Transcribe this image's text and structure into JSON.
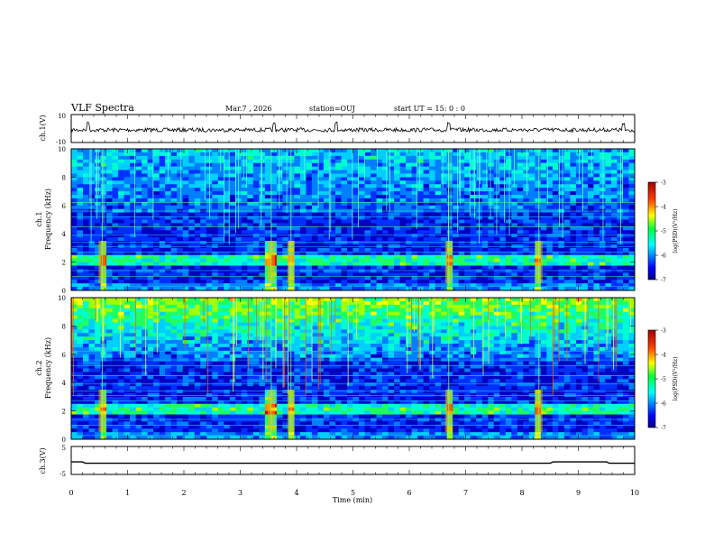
{
  "header": {
    "title": "VLF Spectra",
    "date": "Mar.7 , 2026",
    "station": "station=OUJ",
    "start_time": "start  UT =   15: 0  : 0"
  },
  "chart_data": [
    {
      "name": "ch1-waveform",
      "type": "line",
      "ylabel": "ch.1(V)",
      "ylim": [
        -10,
        10
      ],
      "ytick_labels": [
        "10",
        "-10"
      ],
      "baseline": -1,
      "description_values_x": [
        0,
        10
      ],
      "spike_times_min": [
        0.3,
        3.6,
        4.7,
        6.7,
        9.8
      ]
    },
    {
      "name": "ch1-spectrogram",
      "type": "heatmap",
      "ylabel": "ch.1\nFrequency (kHz)",
      "ylim": [
        0,
        10
      ],
      "yticks": [
        0,
        2,
        4,
        6,
        8,
        10
      ],
      "ytick_labels": [
        "0",
        "2",
        "4",
        "6",
        "8",
        "10"
      ],
      "xlim": [
        0,
        10
      ],
      "colorbar": {
        "label": "log(PSD)(V²/Hz)",
        "range": [
          -7,
          -3
        ],
        "tick_labels": [
          "-3",
          "-4",
          "-5",
          "-6",
          "-7"
        ]
      },
      "event_times_min": [
        0.55,
        3.55,
        3.9,
        6.7,
        8.3
      ]
    },
    {
      "name": "ch2-spectrogram",
      "type": "heatmap",
      "ylabel": "ch.2\nFrequency (kHz)",
      "ylim": [
        0,
        10
      ],
      "yticks": [
        0,
        2,
        4,
        6,
        8,
        10
      ],
      "ytick_labels": [
        "0",
        "2",
        "4",
        "6",
        "8",
        "10"
      ],
      "xlim": [
        0,
        10
      ],
      "colorbar": {
        "label": "log(PSD)(V²/Hz)",
        "range": [
          -7,
          -3
        ],
        "tick_labels": [
          "-3",
          "-4",
          "-5",
          "-6",
          "-7"
        ]
      },
      "event_times_min": [
        0.55,
        3.55,
        3.9,
        6.7,
        8.3
      ]
    },
    {
      "name": "ch3-signal",
      "type": "line",
      "ylabel": "ch.3(V)",
      "ylim": [
        -5,
        5
      ],
      "ytick_labels": [
        "5",
        "-5"
      ],
      "level": -1,
      "elevated_segments_min": [
        [
          0.0,
          0.2
        ],
        [
          8.55,
          9.5
        ]
      ],
      "xlabel": "Time  (min)",
      "xticks": [
        0,
        1,
        2,
        3,
        4,
        5,
        6,
        7,
        8,
        9,
        10
      ],
      "xtick_labels": [
        "0",
        "1",
        "2",
        "3",
        "4",
        "5",
        "6",
        "7",
        "8",
        "9",
        "10"
      ]
    }
  ],
  "colors": {
    "background": "#ffffff",
    "axis": "#000000",
    "spectrogram_low": "#000070",
    "spectrogram_high": "#c00000"
  }
}
